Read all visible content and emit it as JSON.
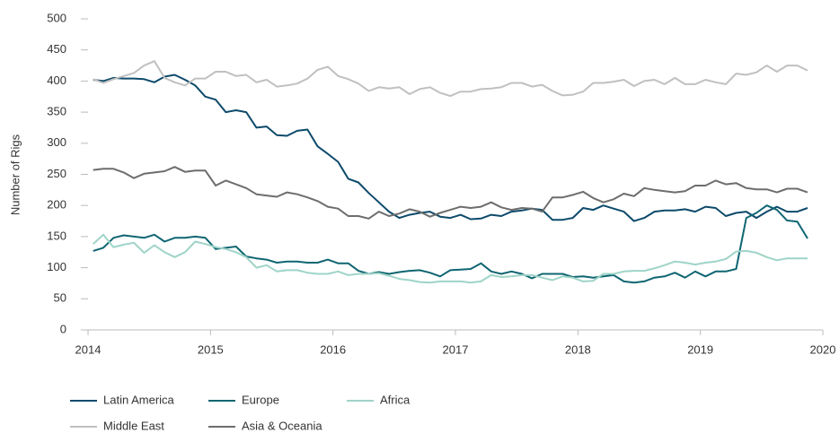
{
  "chart_data": {
    "type": "line",
    "ylabel": "Number of Rigs",
    "x": [
      2014.042,
      2014.125,
      2014.208,
      2014.292,
      2014.375,
      2014.458,
      2014.542,
      2014.625,
      2014.708,
      2014.792,
      2014.875,
      2014.958,
      2015.042,
      2015.125,
      2015.208,
      2015.292,
      2015.375,
      2015.458,
      2015.542,
      2015.625,
      2015.708,
      2015.792,
      2015.875,
      2015.958,
      2016.042,
      2016.125,
      2016.208,
      2016.292,
      2016.375,
      2016.458,
      2016.542,
      2016.625,
      2016.708,
      2016.792,
      2016.875,
      2016.958,
      2017.042,
      2017.125,
      2017.208,
      2017.292,
      2017.375,
      2017.458,
      2017.542,
      2017.625,
      2017.708,
      2017.792,
      2017.875,
      2017.958,
      2018.042,
      2018.125,
      2018.208,
      2018.292,
      2018.375,
      2018.458,
      2018.542,
      2018.625,
      2018.708,
      2018.792,
      2018.875,
      2018.958,
      2019.042,
      2019.125,
      2019.208,
      2019.292,
      2019.375,
      2019.458,
      2019.542,
      2019.625,
      2019.708,
      2019.792,
      2019.875
    ],
    "series": [
      {
        "name": "Latin America",
        "color": "#0d4a6b",
        "values": [
          402,
          400,
          405,
          404,
          404,
          403,
          398,
          407,
          410,
          402,
          393,
          375,
          370,
          350,
          353,
          350,
          325,
          327,
          313,
          312,
          320,
          322,
          295,
          283,
          270,
          243,
          237,
          220,
          205,
          190,
          180,
          185,
          188,
          190,
          182,
          180,
          185,
          178,
          179,
          185,
          183,
          190,
          192,
          195,
          193,
          177,
          177,
          180,
          196,
          193,
          200,
          195,
          190,
          175,
          180,
          190,
          192,
          192,
          194,
          190,
          198,
          196,
          183,
          188,
          190,
          180,
          190,
          198,
          190,
          190,
          196
        ]
      },
      {
        "name": "Europe",
        "color": "#0f6672",
        "values": [
          127,
          132,
          148,
          152,
          150,
          148,
          153,
          142,
          148,
          148,
          150,
          148,
          130,
          132,
          134,
          118,
          115,
          113,
          108,
          110,
          110,
          108,
          108,
          113,
          107,
          107,
          95,
          90,
          93,
          90,
          93,
          95,
          96,
          92,
          86,
          96,
          97,
          98,
          107,
          94,
          90,
          94,
          90,
          83,
          90,
          90,
          90,
          85,
          86,
          84,
          86,
          88,
          78,
          76,
          78,
          84,
          86,
          92,
          84,
          94,
          86,
          94,
          94,
          98,
          180,
          188,
          200,
          193,
          176,
          174,
          147
        ]
      },
      {
        "name": "Africa",
        "color": "#9fd4c8",
        "values": [
          138,
          153,
          133,
          137,
          140,
          124,
          136,
          125,
          117,
          125,
          142,
          138,
          133,
          130,
          125,
          117,
          100,
          104,
          94,
          96,
          96,
          92,
          90,
          90,
          94,
          88,
          90,
          90,
          91,
          87,
          82,
          80,
          77,
          76,
          78,
          78,
          78,
          76,
          78,
          88,
          85,
          86,
          88,
          88,
          84,
          80,
          86,
          84,
          78,
          79,
          90,
          90,
          94,
          95,
          95,
          99,
          104,
          110,
          108,
          105,
          108,
          110,
          114,
          126,
          127,
          124,
          117,
          112,
          115,
          115,
          115
        ]
      },
      {
        "name": "Middle East",
        "color": "#c0c0c0",
        "values": [
          403,
          397,
          403,
          408,
          413,
          425,
          432,
          405,
          398,
          393,
          404,
          404,
          415,
          415,
          408,
          410,
          398,
          402,
          391,
          393,
          396,
          404,
          418,
          423,
          408,
          403,
          396,
          384,
          390,
          388,
          390,
          379,
          387,
          390,
          381,
          376,
          383,
          383,
          387,
          388,
          390,
          397,
          397,
          391,
          394,
          384,
          377,
          378,
          383,
          397,
          397,
          399,
          402,
          392,
          400,
          402,
          395,
          405,
          395,
          395,
          402,
          398,
          395,
          412,
          410,
          414,
          425,
          415,
          425,
          425,
          417
        ]
      },
      {
        "name": "Asia & Oceania",
        "color": "#6d6d6d",
        "values": [
          257,
          259,
          259,
          253,
          244,
          251,
          253,
          255,
          262,
          254,
          256,
          256,
          232,
          240,
          234,
          228,
          218,
          216,
          214,
          221,
          218,
          213,
          207,
          198,
          195,
          183,
          183,
          179,
          190,
          183,
          187,
          194,
          190,
          182,
          188,
          193,
          198,
          196,
          198,
          205,
          197,
          193,
          196,
          195,
          190,
          213,
          213,
          217,
          222,
          212,
          205,
          210,
          219,
          215,
          228,
          225,
          223,
          221,
          223,
          232,
          232,
          240,
          234,
          236,
          228,
          226,
          226,
          221,
          227,
          227,
          221
        ]
      }
    ],
    "xlim": [
      2014,
      2020
    ],
    "xticks": [
      2014,
      2015,
      2016,
      2017,
      2018,
      2019,
      2020
    ],
    "ylim": [
      0,
      500
    ],
    "yticks": [
      0,
      50,
      100,
      150,
      200,
      250,
      300,
      350,
      400,
      450,
      500
    ],
    "grid": false,
    "legend": "bottom"
  }
}
